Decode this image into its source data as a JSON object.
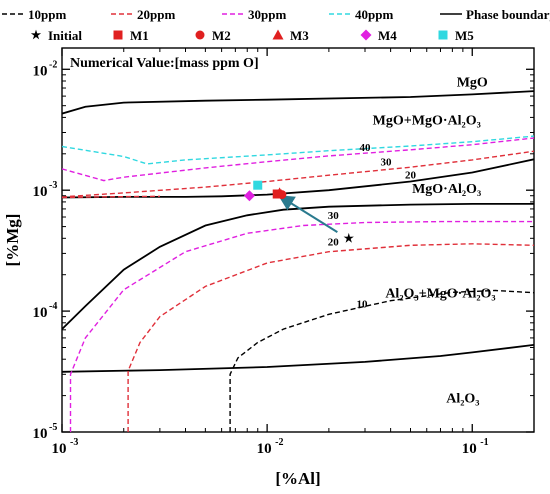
{
  "colors": {
    "boundary": "#000000",
    "ppm10": "#000000",
    "ppm20": "#e0303a",
    "ppm30": "#e020e0",
    "ppm40": "#30d8e0",
    "m1": "#e02020",
    "m4": "#e020e0",
    "m5": "#30d8e0",
    "arrow": "#2a7a8e",
    "brown_curve": "#8b4513",
    "violet_curve": "#8a5cff"
  },
  "legend": {
    "row1": [
      {
        "label": "10ppm",
        "style": "dashed",
        "color_key": "ppm10"
      },
      {
        "label": "20ppm",
        "style": "dashed",
        "color_key": "ppm20"
      },
      {
        "label": "30ppm",
        "style": "dashed",
        "color_key": "ppm30"
      },
      {
        "label": "40ppm",
        "style": "dashed",
        "color_key": "ppm40"
      },
      {
        "label": "Phase boundary line",
        "style": "solid",
        "color_key": "boundary"
      }
    ],
    "row2": [
      {
        "label": "Initial",
        "marker": "star",
        "color_key": "boundary"
      },
      {
        "label": "M1",
        "marker": "square",
        "color_key": "m1"
      },
      {
        "label": "M2",
        "marker": "circle",
        "color_key": "m1"
      },
      {
        "label": "M3",
        "marker": "triangle",
        "color_key": "m1"
      },
      {
        "label": "M4",
        "marker": "diamond",
        "color_key": "m4"
      },
      {
        "label": "M5",
        "marker": "square",
        "color_key": "m5"
      }
    ]
  },
  "annotation": "Numerical Value:[mass ppm O]",
  "chart_data": {
    "type": "line",
    "title": "",
    "xlabel": "[%Al]",
    "ylabel": "[%Mg]",
    "xscale": "log",
    "yscale": "log",
    "xlim": [
      0.001,
      0.2
    ],
    "ylim": [
      1e-05,
      0.015
    ],
    "xticks": [
      0.001,
      0.01,
      0.1
    ],
    "xtick_labels": [
      "10",
      "10",
      "10"
    ],
    "xtick_exponents": [
      "-3",
      "-2",
      "-1"
    ],
    "yticks": [
      1e-05,
      0.0001,
      0.001,
      0.01
    ],
    "ytick_labels": [
      "10",
      "10",
      "10",
      "10"
    ],
    "ytick_exponents": [
      "-5",
      "-4",
      "-3",
      "-2"
    ],
    "region_labels": [
      {
        "text": "MgO",
        "x": 0.1,
        "y": 0.0072
      },
      {
        "text": "MgO+MgO·Al₂O₃",
        "x": 0.06,
        "y": 0.0035
      },
      {
        "text": "MgO·Al₂O₃",
        "x": 0.075,
        "y": 0.00095
      },
      {
        "text": "Al₂O₃+MgO·Al₂O₃",
        "x": 0.07,
        "y": 0.00013
      },
      {
        "text": "Al₂O₃",
        "x": 0.09,
        "y": 1.75e-05
      }
    ],
    "curve_labels": [
      {
        "text": "40",
        "x": 0.03,
        "y": 0.0021
      },
      {
        "text": "30",
        "x": 0.038,
        "y": 0.0016
      },
      {
        "text": "20",
        "x": 0.05,
        "y": 0.00125
      },
      {
        "text": "30",
        "x": 0.021,
        "y": 0.00058
      },
      {
        "text": "20",
        "x": 0.021,
        "y": 0.00035
      },
      {
        "text": "10",
        "x": 0.029,
        "y": 0.000107
      }
    ],
    "boundaries": [
      {
        "name": "MgO / MgO+MgO·Al2O3",
        "points": [
          [
            0.001,
            0.0043
          ],
          [
            0.0013,
            0.0049
          ],
          [
            0.002,
            0.0053
          ],
          [
            0.005,
            0.0055
          ],
          [
            0.01,
            0.0056
          ],
          [
            0.05,
            0.0059
          ],
          [
            0.1,
            0.0062
          ],
          [
            0.2,
            0.0066
          ]
        ]
      },
      {
        "name": "MgO+MgO·Al2O3 / MgO·Al2O3",
        "points": [
          [
            0.001,
            0.00087
          ],
          [
            0.002,
            0.00088
          ],
          [
            0.004,
            0.00088
          ],
          [
            0.006,
            0.00089
          ],
          [
            0.01,
            0.00092
          ],
          [
            0.02,
            0.001
          ],
          [
            0.05,
            0.00118
          ],
          [
            0.1,
            0.0014
          ],
          [
            0.2,
            0.0018
          ]
        ]
      },
      {
        "name": "MgO·Al2O3 / Al2O3+MgO·Al2O3",
        "points": [
          [
            0.001,
            7.1e-05
          ],
          [
            0.0013,
            0.00011
          ],
          [
            0.002,
            0.00022
          ],
          [
            0.003,
            0.00034
          ],
          [
            0.005,
            0.00051
          ],
          [
            0.008,
            0.00062
          ],
          [
            0.012,
            0.00069
          ],
          [
            0.02,
            0.00073
          ],
          [
            0.05,
            0.00076
          ],
          [
            0.1,
            0.00077
          ],
          [
            0.2,
            0.00077
          ]
        ]
      },
      {
        "name": "Al2O3+MgO·Al2O3 / Al2O3",
        "points": [
          [
            0.001,
            3.15e-05
          ],
          [
            0.003,
            3.25e-05
          ],
          [
            0.01,
            3.45e-05
          ],
          [
            0.03,
            3.8e-05
          ],
          [
            0.07,
            4.25e-05
          ],
          [
            0.1,
            4.55e-05
          ],
          [
            0.2,
            5.25e-05
          ]
        ]
      }
    ],
    "series": [
      {
        "name": "10ppm",
        "color_key": "ppm10",
        "points": [
          [
            0.0066,
            1e-05
          ],
          [
            0.0066,
            3e-05
          ],
          [
            0.0072,
            4.1e-05
          ],
          [
            0.009,
            5.5e-05
          ],
          [
            0.012,
            7.1e-05
          ],
          [
            0.02,
            9.4e-05
          ],
          [
            0.04,
            0.000122
          ],
          [
            0.08,
            0.000143
          ],
          [
            0.13,
            0.000148
          ],
          [
            0.2,
            0.000142
          ]
        ]
      },
      {
        "name": "20ppm",
        "color_key": "ppm20",
        "points": [
          [
            0.001,
            0.00088
          ],
          [
            0.002,
            0.00095
          ],
          [
            0.005,
            0.00106
          ],
          [
            0.01,
            0.00118
          ],
          [
            0.02,
            0.00133
          ],
          [
            0.05,
            0.00155
          ],
          [
            0.1,
            0.00178
          ],
          [
            0.2,
            0.0021
          ]
        ]
      },
      {
        "name": "30ppm",
        "color_key": "ppm30",
        "points": [
          [
            0.001,
            0.0015
          ],
          [
            0.0016,
            0.0012
          ],
          [
            0.002,
            0.00128
          ],
          [
            0.005,
            0.00153
          ],
          [
            0.01,
            0.00172
          ],
          [
            0.02,
            0.00192
          ],
          [
            0.05,
            0.00216
          ],
          [
            0.1,
            0.00238
          ],
          [
            0.2,
            0.0027
          ]
        ]
      },
      {
        "name": "40ppm",
        "color_key": "ppm40",
        "points": [
          [
            0.001,
            0.0023
          ],
          [
            0.002,
            0.0019
          ],
          [
            0.0026,
            0.00165
          ],
          [
            0.004,
            0.00178
          ],
          [
            0.01,
            0.00196
          ],
          [
            0.02,
            0.00212
          ],
          [
            0.05,
            0.00232
          ],
          [
            0.1,
            0.00252
          ],
          [
            0.2,
            0.0028
          ]
        ]
      },
      {
        "name": "",
        "color_key": "ppm20",
        "points": [
          [
            0.001,
            0.00087
          ],
          [
            0.0015,
            0.00088
          ],
          [
            0.003,
            0.00089
          ]
        ]
      },
      {
        "name": "",
        "color_key": "ppm30",
        "points": [
          [
            0.0011,
            1e-05
          ],
          [
            0.0011,
            3e-05
          ],
          [
            0.0013,
            6e-05
          ],
          [
            0.002,
            0.00015
          ],
          [
            0.004,
            0.00031
          ],
          [
            0.008,
            0.00044
          ],
          [
            0.015,
            0.00051
          ],
          [
            0.03,
            0.00054
          ],
          [
            0.07,
            0.00055
          ],
          [
            0.2,
            0.00055
          ]
        ]
      },
      {
        "name": "",
        "color_key": "ppm20",
        "points": [
          [
            0.0021,
            1e-05
          ],
          [
            0.0021,
            3.2e-05
          ],
          [
            0.0024,
            5.5e-05
          ],
          [
            0.003,
            9e-05
          ],
          [
            0.005,
            0.00016
          ],
          [
            0.01,
            0.00025
          ],
          [
            0.02,
            0.00031
          ],
          [
            0.05,
            0.00035
          ],
          [
            0.1,
            0.00036
          ],
          [
            0.2,
            0.00035
          ]
        ]
      }
    ],
    "measurements": [
      {
        "name": "Initial",
        "marker": "star",
        "color_key": "boundary",
        "x": 0.025,
        "y": 0.0004
      },
      {
        "name": "M1",
        "marker": "square",
        "color_key": "m1",
        "x": 0.0112,
        "y": 0.00093
      },
      {
        "name": "M2",
        "marker": "circle",
        "color_key": "m1",
        "x": 0.0118,
        "y": 0.00092
      },
      {
        "name": "M3",
        "marker": "triangle",
        "color_key": "m1",
        "x": 0.0115,
        "y": 0.00095
      },
      {
        "name": "M4",
        "marker": "diamond",
        "color_key": "m4",
        "x": 0.0082,
        "y": 0.0009
      },
      {
        "name": "M5",
        "marker": "square",
        "color_key": "m5",
        "x": 0.009,
        "y": 0.0011
      }
    ],
    "arrow": {
      "from": [
        0.022,
        0.00045
      ],
      "to": [
        0.0122,
        0.00084
      ]
    },
    "grid": false,
    "legend_position": "top"
  }
}
